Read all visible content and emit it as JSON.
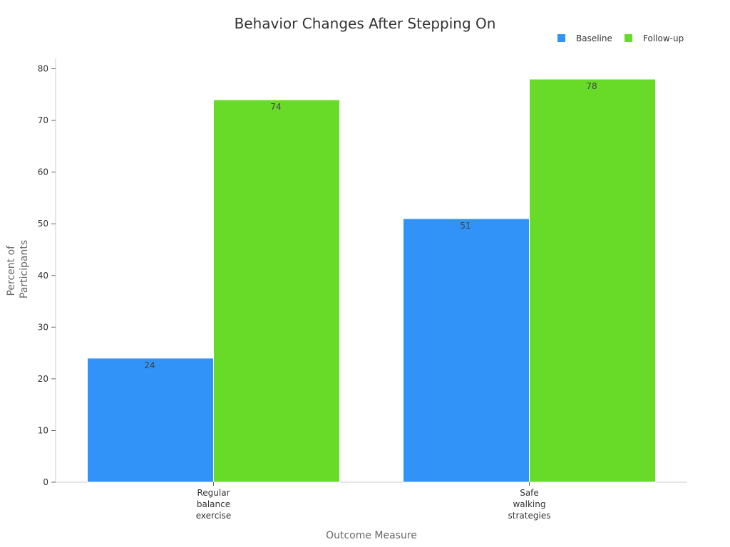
{
  "chart_data": {
    "type": "bar",
    "title": "Behavior Changes After Stepping On",
    "xlabel": "Outcome Measure",
    "ylabel": [
      "Percent of",
      "Participants"
    ],
    "categories": [
      [
        "Regular",
        "balance",
        "exercise"
      ],
      [
        "Safe",
        "walking",
        "strategies"
      ]
    ],
    "series": [
      {
        "name": "Baseline",
        "color": "#3192f7",
        "values": [
          24,
          51
        ]
      },
      {
        "name": "Follow-up",
        "color": "#67db28",
        "values": [
          74,
          78
        ]
      }
    ],
    "ylim": [
      0,
      82
    ],
    "yticks": [
      0,
      10,
      20,
      30,
      40,
      50,
      60,
      70,
      80
    ],
    "grid": false,
    "legend_position": "top-right",
    "data_labels": true
  }
}
